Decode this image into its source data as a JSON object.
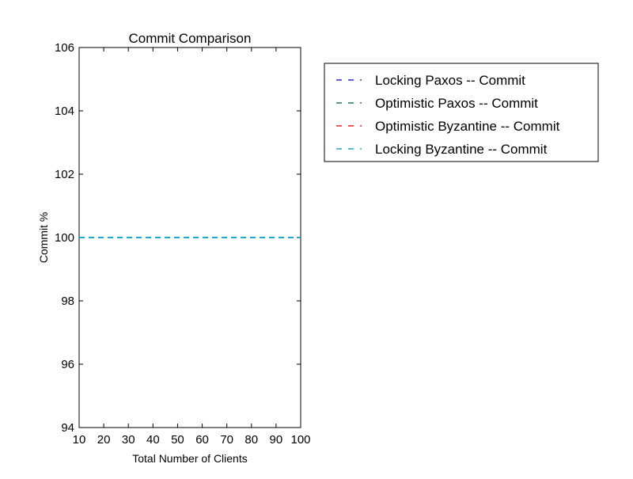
{
  "chart_data": {
    "type": "line",
    "title": "Commit Comparison",
    "xlabel": "Total Number of Clients",
    "ylabel": "Commit %",
    "xlim": [
      10,
      100
    ],
    "ylim": [
      94,
      106
    ],
    "x_ticks": [
      10,
      20,
      30,
      40,
      50,
      60,
      70,
      80,
      90,
      100
    ],
    "y_ticks": [
      94,
      96,
      98,
      100,
      102,
      104,
      106
    ],
    "grid": false,
    "legend_position": "outside-top-right",
    "series": [
      {
        "name": "Locking Paxos -- Commit",
        "color": "#2b2bd6",
        "line_style": "dashed",
        "x": [
          10,
          20,
          30,
          40,
          50,
          60,
          70,
          80,
          90,
          100
        ],
        "values": [
          100,
          100,
          100,
          100,
          100,
          100,
          100,
          100,
          100,
          100
        ]
      },
      {
        "name": "Optimistic Paxos -- Commit",
        "color": "#1f7a5a",
        "line_style": "dashed",
        "x": [
          10,
          20,
          30,
          40,
          50,
          60,
          70,
          80,
          90,
          100
        ],
        "values": [
          100,
          100,
          100,
          100,
          100,
          100,
          100,
          100,
          100,
          100
        ]
      },
      {
        "name": "Optimistic Byzantine -- Commit",
        "color": "#ee2222",
        "line_style": "dashed",
        "x": [
          10,
          20,
          30,
          40,
          50,
          60,
          70,
          80,
          90,
          100
        ],
        "values": [
          100,
          100,
          100,
          100,
          100,
          100,
          100,
          100,
          100,
          100
        ]
      },
      {
        "name": "Locking Byzantine -- Commit",
        "color": "#2aa6c8",
        "line_style": "dashed",
        "x": [
          10,
          20,
          30,
          40,
          50,
          60,
          70,
          80,
          90,
          100
        ],
        "values": [
          100,
          100,
          100,
          100,
          100,
          100,
          100,
          100,
          100,
          100
        ]
      }
    ]
  }
}
